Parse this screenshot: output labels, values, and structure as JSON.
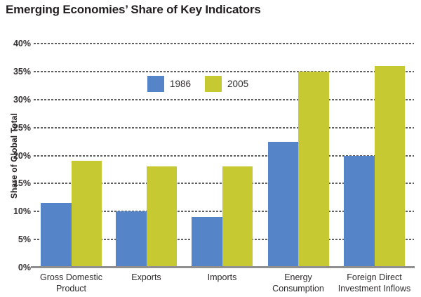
{
  "title": "Emerging Economies’ Share of Key Indicators",
  "chart_data": {
    "type": "bar",
    "categories": [
      "Gross Domestic\nProduct",
      "Exports",
      "Imports",
      "Energy\nConsumption",
      "Foreign Direct\nInvestment Inflows"
    ],
    "series": [
      {
        "name": "1986",
        "color": "#5585c8",
        "values": [
          11.5,
          10,
          9,
          22.5,
          20
        ]
      },
      {
        "name": "2005",
        "color": "#c6c931",
        "values": [
          19,
          18,
          18,
          35,
          36
        ]
      }
    ],
    "title": "Emerging Economies’ Share of Key Indicators",
    "xlabel": "",
    "ylabel": "Share of Global Total",
    "ylim": [
      0,
      40
    ],
    "ytick_step": 5,
    "ytick_suffix": "%",
    "grid": "horizontal-dotted",
    "legend_position": "top-center-inside-plot"
  },
  "colors": {
    "grid": "#5f5f5f",
    "axis_line": "#8f8f8f",
    "title_text": "#231f20",
    "label_text": "#2e2a2b"
  }
}
